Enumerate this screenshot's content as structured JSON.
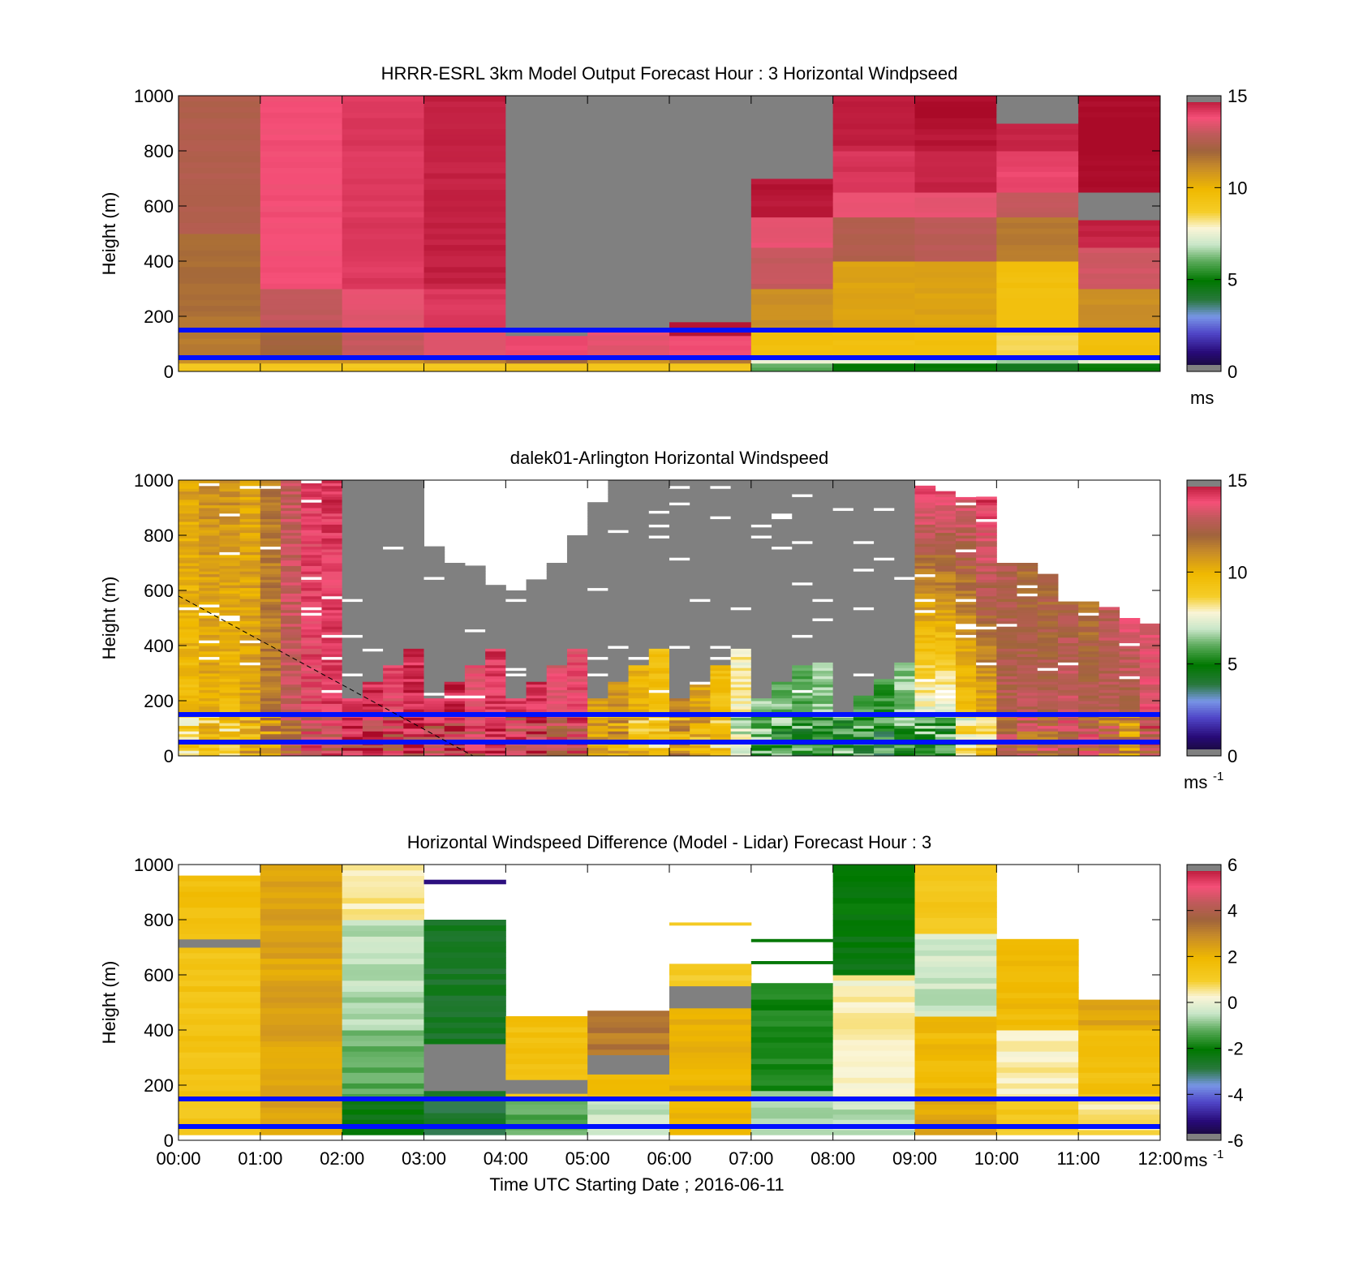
{
  "chart_data": [
    {
      "type": "heatmap",
      "title": "HRRR-ESRL 3km Model Output   Forecast Hour : 3 Horizontal Windpseed",
      "ylabel": "Height (m)",
      "xlabel": "",
      "ylim": [
        0,
        1000
      ],
      "xlim": [
        0,
        12
      ],
      "yticks": [
        "0",
        "200",
        "400",
        "600",
        "800",
        "1000"
      ],
      "xticks": [
        "",
        "",
        "",
        "",
        "",
        "",
        "",
        "",
        "",
        "",
        "",
        "",
        ""
      ],
      "colorbar": {
        "min": 0,
        "max": 15,
        "ticks": [
          "0",
          "5",
          "10",
          "15"
        ],
        "unit": "ms",
        "unit_sup": ""
      },
      "reference_lines_m": [
        50,
        150
      ],
      "columns_hour_start": [
        0,
        1,
        2,
        3,
        4,
        5,
        6,
        7,
        8,
        9,
        10,
        11
      ],
      "column_values": [
        [
          [
            0,
            30,
            9
          ],
          [
            30,
            60,
            11
          ],
          [
            60,
            200,
            11.5
          ],
          [
            200,
            500,
            11.8
          ],
          [
            500,
            1000,
            12.5
          ]
        ],
        [
          [
            0,
            30,
            9
          ],
          [
            30,
            60,
            11
          ],
          [
            60,
            150,
            12
          ],
          [
            150,
            300,
            13
          ],
          [
            300,
            1000,
            13.8
          ]
        ],
        [
          [
            0,
            30,
            9
          ],
          [
            30,
            60,
            11
          ],
          [
            60,
            150,
            13
          ],
          [
            150,
            300,
            13.5
          ],
          [
            300,
            1000,
            14.2
          ]
        ],
        [
          [
            0,
            30,
            9
          ],
          [
            30,
            60,
            11.5
          ],
          [
            60,
            150,
            13.5
          ],
          [
            150,
            300,
            14.2
          ],
          [
            300,
            1000,
            14.6
          ]
        ],
        [
          [
            0,
            30,
            9
          ],
          [
            30,
            60,
            12
          ],
          [
            60,
            130,
            14
          ],
          [
            130,
            1000,
            null
          ]
        ],
        [
          [
            0,
            30,
            9
          ],
          [
            30,
            60,
            11
          ],
          [
            60,
            150,
            13.5
          ],
          [
            150,
            1000,
            null
          ]
        ],
        [
          [
            0,
            30,
            9
          ],
          [
            30,
            60,
            11.5
          ],
          [
            60,
            130,
            13.8
          ],
          [
            130,
            180,
            14.8
          ],
          [
            180,
            1000,
            null
          ]
        ],
        [
          [
            0,
            30,
            6
          ],
          [
            30,
            60,
            7.5
          ],
          [
            60,
            150,
            9.5
          ],
          [
            150,
            300,
            11
          ],
          [
            300,
            450,
            13
          ],
          [
            450,
            560,
            13.6
          ],
          [
            560,
            700,
            14.8
          ],
          [
            700,
            1000,
            null
          ]
        ],
        [
          [
            0,
            30,
            5
          ],
          [
            30,
            60,
            7.5
          ],
          [
            60,
            150,
            9.5
          ],
          [
            150,
            400,
            10.5
          ],
          [
            400,
            560,
            12.5
          ],
          [
            560,
            650,
            13.6
          ],
          [
            650,
            800,
            14.3
          ],
          [
            800,
            1000,
            14.6
          ]
        ],
        [
          [
            0,
            30,
            5
          ],
          [
            30,
            60,
            7
          ],
          [
            60,
            150,
            9.5
          ],
          [
            150,
            400,
            10.5
          ],
          [
            400,
            560,
            12.8
          ],
          [
            560,
            650,
            13.6
          ],
          [
            650,
            800,
            14.6
          ],
          [
            800,
            900,
            14.8
          ],
          [
            900,
            1000,
            15
          ]
        ],
        [
          [
            0,
            30,
            4.5
          ],
          [
            30,
            60,
            6.5
          ],
          [
            60,
            150,
            8.5
          ],
          [
            150,
            400,
            9.5
          ],
          [
            400,
            560,
            11.5
          ],
          [
            560,
            650,
            13
          ],
          [
            650,
            800,
            14
          ],
          [
            800,
            900,
            14.6
          ],
          [
            900,
            1000,
            null
          ]
        ],
        [
          [
            0,
            30,
            5
          ],
          [
            30,
            60,
            7.5
          ],
          [
            60,
            150,
            9.5
          ],
          [
            150,
            300,
            11
          ],
          [
            300,
            450,
            13.2
          ],
          [
            450,
            550,
            14.6
          ],
          [
            550,
            650,
            null
          ],
          [
            650,
            1000,
            15
          ]
        ]
      ]
    },
    {
      "type": "heatmap",
      "title": "dalek01-Arlington  Horizontal Windspeed",
      "ylabel": "Height (m)",
      "xlabel": "",
      "ylim": [
        0,
        1000
      ],
      "xlim": [
        0,
        12
      ],
      "yticks": [
        "0",
        "200",
        "400",
        "600",
        "800",
        "1000"
      ],
      "xticks": [
        "",
        "",
        "",
        "",
        "",
        "",
        "",
        "",
        "",
        "",
        "",
        "",
        ""
      ],
      "colorbar": {
        "min": 0,
        "max": 15,
        "ticks": [
          "0",
          "5",
          "10",
          "15"
        ],
        "unit": "ms",
        "unit_sup": "-1"
      },
      "reference_lines_m": [
        50,
        150
      ],
      "dashed_line": [
        [
          0,
          580
        ],
        [
          3.6,
          0
        ]
      ],
      "columns_per_hour": 4,
      "column_tops_m": [
        1000,
        1000,
        1000,
        1000,
        1000,
        1000,
        1000,
        1000,
        1000,
        1000,
        1000,
        1000,
        760,
        700,
        690,
        620,
        600,
        640,
        700,
        800,
        920,
        1000,
        1000,
        1000,
        1000,
        1000,
        1000,
        1000,
        1000,
        1000,
        1000,
        1000,
        1000,
        1000,
        1000,
        1000,
        980,
        960,
        960,
        940,
        700,
        700,
        660,
        560,
        560,
        540,
        500,
        480
      ],
      "column_base_value": [
        9.5,
        10,
        9.5,
        10.5,
        11.5,
        13,
        13.8,
        14,
        14.2,
        14.4,
        13.8,
        14.4,
        14,
        14.5,
        13.8,
        14.2,
        14,
        14.3,
        13.6,
        13.8,
        10.5,
        11,
        10,
        9.5,
        11,
        10.5,
        9.5,
        8,
        6.5,
        6.2,
        6,
        6.4,
        6.2,
        6,
        5.6,
        6.4,
        6.2,
        6.1,
        8.5,
        9.5,
        12.5,
        13,
        12.8,
        13.6,
        13.2,
        12.6,
        11.5,
        13.6
      ],
      "column_top_value": [
        10.5,
        11,
        11,
        10.5,
        11.5,
        13,
        14,
        14.2,
        null,
        null,
        null,
        null,
        null,
        null,
        null,
        null,
        null,
        null,
        null,
        null,
        null,
        null,
        null,
        null,
        null,
        null,
        null,
        null,
        null,
        null,
        null,
        null,
        null,
        null,
        null,
        null,
        14.2,
        14,
        13.6,
        14.2,
        12.4,
        11.8,
        12,
        12.2,
        11.6,
        12.8,
        13.6,
        13.4
      ]
    },
    {
      "type": "heatmap",
      "title": "Horizontal Windspeed Difference (Model - Lidar) Forecast Hour : 3",
      "ylabel": "Height (m)",
      "xlabel": "Time UTC  Starting Date ; 2016-06-11",
      "ylim": [
        0,
        1000
      ],
      "xlim": [
        0,
        12
      ],
      "yticks": [
        "0",
        "200",
        "400",
        "600",
        "800",
        "1000"
      ],
      "xticks": [
        "00:00",
        "01:00",
        "02:00",
        "03:00",
        "04:00",
        "05:00",
        "06:00",
        "07:00",
        "08:00",
        "09:00",
        "10:00",
        "11:00",
        "12:00"
      ],
      "colorbar": {
        "min": -6,
        "max": 6,
        "ticks": [
          "-6",
          "-4",
          "-2",
          "0",
          "2",
          "4",
          "6"
        ],
        "unit": "ms",
        "unit_sup": "-1"
      },
      "reference_lines_m": [
        50,
        150
      ],
      "columns_hour_start": [
        0,
        1,
        2,
        3,
        4,
        5,
        6,
        7,
        8,
        9,
        10,
        11
      ],
      "column_values": [
        [
          [
            20,
            700,
            1.4
          ],
          [
            700,
            730,
            null
          ],
          [
            730,
            960,
            1.6
          ]
        ],
        [
          [
            20,
            1000,
            2.4
          ]
        ],
        [
          [
            20,
            150,
            -2.2
          ],
          [
            150,
            400,
            -1.2
          ],
          [
            400,
            800,
            -0.6
          ],
          [
            800,
            1000,
            0.5
          ]
        ],
        [
          [
            20,
            180,
            -2.8
          ],
          [
            180,
            350,
            null
          ],
          [
            350,
            800,
            -2.6
          ],
          [
            930,
            945,
            -5
          ]
        ],
        [
          [
            20,
            150,
            -1.2
          ],
          [
            150,
            170,
            1.2
          ],
          [
            170,
            220,
            null
          ],
          [
            220,
            450,
            1.6
          ]
        ],
        [
          [
            20,
            150,
            -0.4
          ],
          [
            150,
            240,
            1.8
          ],
          [
            240,
            310,
            null
          ],
          [
            310,
            470,
            3.2
          ]
        ],
        [
          [
            20,
            480,
            2
          ],
          [
            480,
            560,
            null
          ],
          [
            560,
            640,
            1.2
          ],
          [
            780,
            790,
            1
          ]
        ],
        [
          [
            20,
            180,
            -0.6
          ],
          [
            180,
            570,
            -1.8
          ],
          [
            640,
            650,
            -2.2
          ],
          [
            720,
            730,
            -2.2
          ]
        ],
        [
          [
            20,
            150,
            -0.5
          ],
          [
            150,
            600,
            0.3
          ],
          [
            600,
            1000,
            -2.2
          ]
        ],
        [
          [
            20,
            150,
            2.3
          ],
          [
            150,
            450,
            1.8
          ],
          [
            450,
            750,
            -0.4
          ],
          [
            750,
            1000,
            1.2
          ]
        ],
        [
          [
            20,
            150,
            1.2
          ],
          [
            150,
            400,
            0.4
          ],
          [
            400,
            730,
            1.8
          ]
        ],
        [
          [
            20,
            150,
            0.6
          ],
          [
            150,
            400,
            1.6
          ],
          [
            400,
            510,
            2.4
          ]
        ]
      ]
    }
  ]
}
